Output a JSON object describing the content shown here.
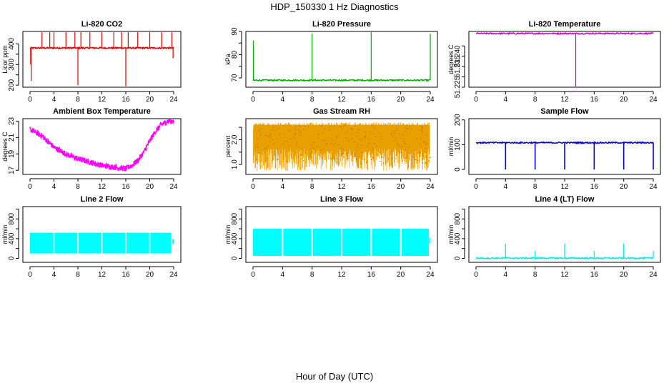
{
  "figure": {
    "title": "HDP_150330  1 Hz Diagnostics",
    "xlabel": "Hour of Day (UTC)"
  },
  "chart_data": [
    {
      "id": "co2",
      "type": "line",
      "title": "Li-820 CO2",
      "ylabel": "Licor ppm",
      "color": "#e00000",
      "xlim": [
        0,
        24
      ],
      "ylim": [
        190,
        460
      ],
      "xticks": [
        0,
        4,
        8,
        12,
        16,
        20,
        24
      ],
      "xtick_labels": [
        "0",
        "4",
        "8",
        "12",
        "16",
        "20",
        "24"
      ],
      "yticks": [
        200,
        250,
        300,
        350,
        400
      ],
      "ytick_labels": [
        "200",
        "",
        "300",
        "",
        "400"
      ],
      "baseline": 380,
      "spikes": [
        [
          0.1,
          300
        ],
        [
          0.2,
          220
        ],
        [
          2.0,
          460
        ],
        [
          3.3,
          460
        ],
        [
          4.0,
          460
        ],
        [
          6.0,
          460
        ],
        [
          7.5,
          460
        ],
        [
          8.0,
          200
        ],
        [
          8.5,
          460
        ],
        [
          10.0,
          460
        ],
        [
          12.0,
          460
        ],
        [
          14.0,
          460
        ],
        [
          15.3,
          460
        ],
        [
          16.0,
          195
        ],
        [
          16.4,
          460
        ],
        [
          18.0,
          460
        ],
        [
          20.0,
          460
        ],
        [
          22.0,
          460
        ],
        [
          23.7,
          460
        ],
        [
          23.9,
          330
        ]
      ]
    },
    {
      "id": "pressure",
      "type": "line",
      "title": "Li-820 Pressure",
      "ylabel": "kPa",
      "color": "#00b000",
      "xlim": [
        0,
        24
      ],
      "ylim": [
        66,
        90
      ],
      "xticks": [
        0,
        4,
        8,
        12,
        16,
        20,
        24
      ],
      "xtick_labels": [
        "0",
        "4",
        "8",
        "12",
        "16",
        "20",
        "24"
      ],
      "yticks": [
        70,
        75,
        80,
        85,
        90
      ],
      "ytick_labels": [
        "70",
        "",
        "80",
        "",
        "90"
      ],
      "baseline": 69.0,
      "spikes": [
        [
          0.05,
          86
        ],
        [
          8.0,
          89
        ],
        [
          16.0,
          90
        ],
        [
          24.0,
          89
        ]
      ]
    },
    {
      "id": "temperature",
      "type": "line",
      "title": "Li-820 Temperature",
      "ylabel": "degrees C",
      "color": "#cc00cc",
      "xlim": [
        0,
        24
      ],
      "ylim": [
        51.225,
        51.252
      ],
      "xticks": [
        0,
        4,
        8,
        12,
        16,
        20,
        24
      ],
      "xtick_labels": [
        "0",
        "4",
        "8",
        "12",
        "16",
        "20",
        "24"
      ],
      "yticks": [
        51.225,
        51.23,
        51.235,
        51.24,
        51.245
      ],
      "ytick_labels": [
        "51.225",
        "",
        "51.235",
        "51.240",
        ""
      ],
      "baseline": 51.251,
      "spikes": [
        [
          13.5,
          51.225
        ]
      ]
    },
    {
      "id": "ambient",
      "type": "line",
      "title": "Ambient Box Temperature",
      "ylabel": "degrees C",
      "color": "#ff00ff",
      "xlim": [
        0,
        24
      ],
      "ylim": [
        16.5,
        23.3
      ],
      "xticks": [
        0,
        4,
        8,
        12,
        16,
        20,
        24
      ],
      "xtick_labels": [
        "0",
        "4",
        "8",
        "12",
        "16",
        "20",
        "24"
      ],
      "yticks": [
        17,
        19,
        21,
        23
      ],
      "ytick_labels": [
        "17",
        "19",
        "21",
        "23"
      ],
      "curve": [
        [
          0,
          22.0
        ],
        [
          2,
          21.2
        ],
        [
          4,
          19.8
        ],
        [
          6,
          19.0
        ],
        [
          8,
          18.4
        ],
        [
          10,
          18.0
        ],
        [
          12,
          17.6
        ],
        [
          14,
          17.4
        ],
        [
          16,
          17.2
        ],
        [
          17,
          17.6
        ],
        [
          18,
          18.2
        ],
        [
          19,
          19.2
        ],
        [
          20,
          20.6
        ],
        [
          21,
          21.8
        ],
        [
          22,
          22.6
        ],
        [
          23,
          23.0
        ],
        [
          24,
          23.0
        ]
      ],
      "noise": 0.35
    },
    {
      "id": "rh",
      "type": "line",
      "title": "Gas Stream RH",
      "ylabel": "percent",
      "color": "#e8a000",
      "xlim": [
        0,
        24
      ],
      "ylim": [
        0.6,
        2.85
      ],
      "xticks": [
        0,
        4,
        8,
        12,
        16,
        20,
        24
      ],
      "xtick_labels": [
        "0",
        "4",
        "8",
        "12",
        "16",
        "20",
        "24"
      ],
      "yticks": [
        1.0,
        1.5,
        2.0,
        2.5
      ],
      "ytick_labels": [
        "1.0",
        "",
        "2.0",
        ""
      ],
      "band": [
        0.75,
        2.7
      ]
    },
    {
      "id": "sample_flow",
      "type": "line",
      "title": "Sample Flow",
      "ylabel": "ml/min",
      "color": "#0000dd",
      "xlim": [
        0,
        24
      ],
      "ylim": [
        -20,
        205
      ],
      "xticks": [
        0,
        4,
        8,
        12,
        16,
        20,
        24
      ],
      "xtick_labels": [
        "0",
        "4",
        "8",
        "12",
        "16",
        "20",
        "24"
      ],
      "yticks": [
        0,
        100,
        200
      ],
      "ytick_labels": [
        "0",
        "100",
        "200"
      ],
      "baseline": 108,
      "dips": [
        [
          4.0,
          0
        ],
        [
          8.0,
          0
        ],
        [
          12.0,
          0
        ],
        [
          16.0,
          0
        ],
        [
          20.0,
          0
        ],
        [
          24.0,
          0
        ]
      ]
    },
    {
      "id": "line2",
      "type": "area",
      "title": "Line 2 Flow",
      "ylabel": "ml/min",
      "color": "#00ffff",
      "xlim": [
        0,
        24
      ],
      "ylim": [
        -80,
        1050
      ],
      "xticks": [
        0,
        4,
        8,
        12,
        16,
        20,
        24
      ],
      "xtick_labels": [
        "0",
        "4",
        "8",
        "12",
        "16",
        "20",
        "24"
      ],
      "yticks": [
        0,
        200,
        400,
        600,
        800,
        1000
      ],
      "ytick_labels": [
        "0",
        "",
        "400",
        "",
        "800",
        ""
      ],
      "band": [
        100,
        520
      ],
      "segments": [
        [
          0.0,
          3.9
        ],
        [
          4.1,
          7.9
        ],
        [
          8.1,
          11.9
        ],
        [
          12.1,
          15.9
        ],
        [
          16.1,
          19.9
        ],
        [
          20.1,
          23.6
        ]
      ],
      "tail": [
        23.9,
        290,
        390
      ]
    },
    {
      "id": "line3",
      "type": "area",
      "title": "Line 3 Flow",
      "ylabel": "ml/min",
      "color": "#00ffff",
      "xlim": [
        0,
        24
      ],
      "ylim": [
        -80,
        1050
      ],
      "xticks": [
        0,
        4,
        8,
        12,
        16,
        20,
        24
      ],
      "xtick_labels": [
        "0",
        "4",
        "8",
        "12",
        "16",
        "20",
        "24"
      ],
      "yticks": [
        0,
        200,
        400,
        600,
        800,
        1000
      ],
      "ytick_labels": [
        "0",
        "",
        "400",
        "",
        "800",
        ""
      ],
      "band": [
        50,
        600
      ],
      "segments": [
        [
          0.0,
          3.9
        ],
        [
          4.1,
          7.9
        ],
        [
          8.1,
          11.9
        ],
        [
          12.1,
          15.9
        ],
        [
          16.1,
          19.9
        ],
        [
          20.1,
          23.8
        ]
      ],
      "tail": [
        23.95,
        300,
        420
      ]
    },
    {
      "id": "line4",
      "type": "line",
      "title": "Line 4 (LT) Flow",
      "ylabel": "ml/min",
      "color": "#00e8e8",
      "xlim": [
        0,
        24
      ],
      "ylim": [
        -80,
        1050
      ],
      "xticks": [
        0,
        4,
        8,
        12,
        16,
        20,
        24
      ],
      "xtick_labels": [
        "0",
        "4",
        "8",
        "12",
        "16",
        "20",
        "24"
      ],
      "yticks": [
        0,
        200,
        400,
        600,
        800,
        1000
      ],
      "ytick_labels": [
        "0",
        "",
        "400",
        "",
        "800",
        ""
      ],
      "baseline": 5,
      "spikes": [
        [
          4.0,
          300
        ],
        [
          8.0,
          150
        ],
        [
          12.0,
          300
        ],
        [
          16.0,
          150
        ],
        [
          20.0,
          300
        ],
        [
          24.0,
          150
        ]
      ]
    }
  ]
}
